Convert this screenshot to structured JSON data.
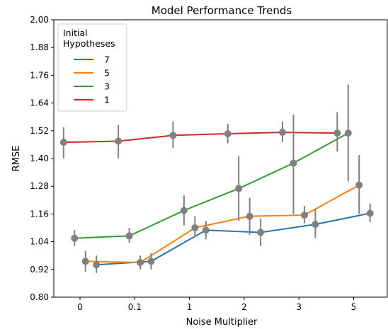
{
  "chart_data": {
    "type": "line",
    "title": "Model Performance Trends",
    "xlabel": "Noise Multiplier",
    "ylabel": "RMSE",
    "categories": [
      "0",
      "0.1",
      "1",
      "2",
      "3",
      "5"
    ],
    "ylim": [
      0.8,
      2.0
    ],
    "yticks": [
      "0.80",
      "0.92",
      "1.04",
      "1.16",
      "1.28",
      "1.40",
      "1.52",
      "1.64",
      "1.76",
      "1.88",
      "2.00"
    ],
    "legend": {
      "title": "Initial\nHypotheses",
      "placement": "top-left"
    },
    "marker_color": "#808080",
    "series": [
      {
        "name": "7",
        "color": "#1f77b4",
        "dodge": 0.3,
        "values": [
          0.94,
          0.955,
          1.09,
          1.08,
          1.115,
          1.163
        ],
        "err_low": [
          0.905,
          0.92,
          1.05,
          1.02,
          1.055,
          1.125
        ],
        "err_high": [
          0.98,
          0.99,
          1.13,
          1.14,
          1.18,
          1.205
        ]
      },
      {
        "name": "5",
        "color": "#ff7f0e",
        "dodge": 0.1,
        "values": [
          0.955,
          0.95,
          1.1,
          1.15,
          1.155,
          1.285
        ],
        "err_low": [
          0.91,
          0.92,
          1.06,
          1.07,
          1.12,
          1.16
        ],
        "err_high": [
          1.0,
          0.98,
          1.15,
          1.23,
          1.195,
          1.415
        ]
      },
      {
        "name": "3",
        "color": "#2ca02c",
        "dodge": -0.1,
        "values": [
          1.055,
          1.065,
          1.175,
          1.27,
          1.38,
          1.51
        ],
        "err_low": [
          1.02,
          1.035,
          1.11,
          1.13,
          1.16,
          1.3
        ],
        "err_high": [
          1.09,
          1.1,
          1.24,
          1.41,
          1.59,
          1.72
        ]
      },
      {
        "name": "1",
        "color": "#d62728",
        "dodge": -0.3,
        "values": [
          1.47,
          1.475,
          1.5,
          1.507,
          1.513,
          1.51
        ],
        "err_low": [
          1.4,
          1.4,
          1.445,
          1.465,
          1.47,
          1.43
        ],
        "err_high": [
          1.535,
          1.545,
          1.56,
          1.55,
          1.56,
          1.6
        ]
      }
    ]
  }
}
